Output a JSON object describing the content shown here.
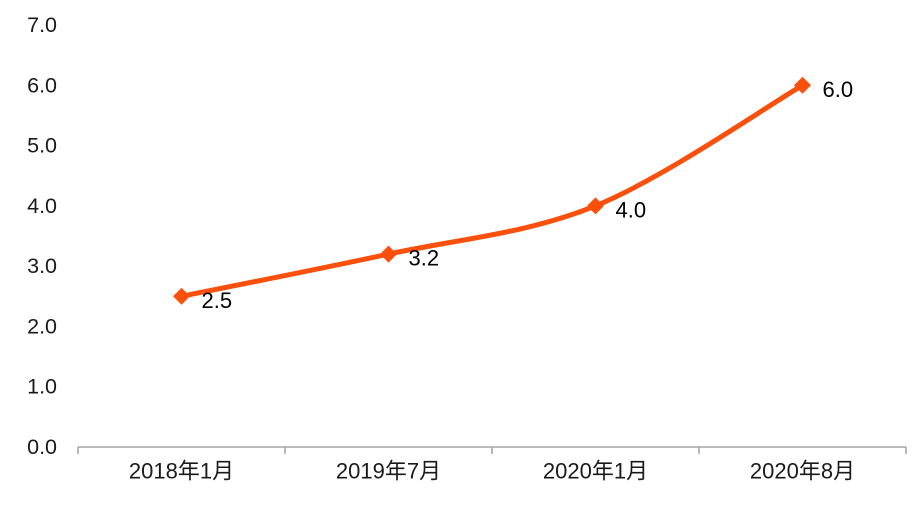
{
  "chart_data": {
    "type": "line",
    "title": "",
    "xlabel": "",
    "ylabel": "",
    "categories": [
      "2018年1月",
      "2019年7月",
      "2020年1月",
      "2020年8月"
    ],
    "series": [
      {
        "name": "series-1",
        "values": [
          2.5,
          3.2,
          4.0,
          6.0
        ],
        "data_labels": [
          "2.5",
          "3.2",
          "4.0",
          "6.0"
        ]
      }
    ],
    "y_tick_labels": [
      "0.0",
      "1.0",
      "2.0",
      "3.0",
      "4.0",
      "5.0",
      "6.0",
      "7.0"
    ],
    "ylim": [
      0,
      7
    ],
    "y_step": 1,
    "grid": false,
    "legend_position": "none",
    "smooth_line": true,
    "marker_shape": "diamond",
    "colors": {
      "line": "#FB4F0C",
      "marker": "#FB4F0C",
      "axis": "#A6A6A6",
      "tick_label": "#1A1A1A",
      "data_label": "#000000",
      "background": "#FFFFFF"
    }
  }
}
